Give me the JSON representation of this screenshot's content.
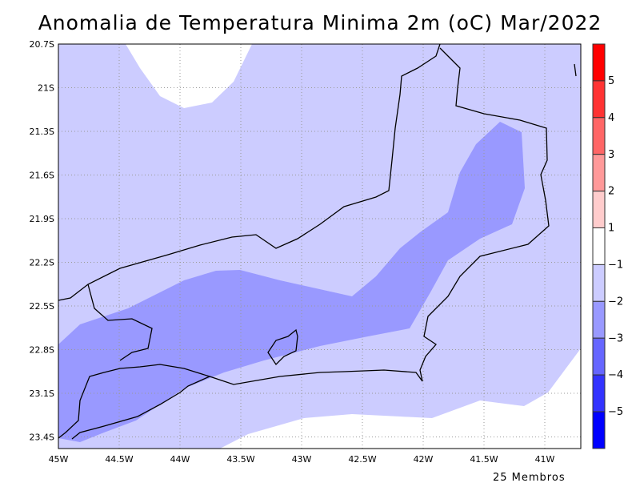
{
  "title": "Anomalia de Temperatura Minima 2m (oC) Mar/2022",
  "footer": "25 Membros",
  "lat_labels": [
    "20.7S",
    "21S",
    "21.3S",
    "21.6S",
    "21.9S",
    "22.2S",
    "22.5S",
    "22.8S",
    "23.1S",
    "23.4S"
  ],
  "lon_labels": [
    "45W",
    "44.5W",
    "44W",
    "43.5W",
    "43W",
    "42.5W",
    "42W",
    "41.5W",
    "41W"
  ],
  "colorbar": {
    "labels": [
      "5",
      "4",
      "3",
      "2",
      "1",
      "−1",
      "−2",
      "−3",
      "−4",
      "−5"
    ],
    "colors": [
      "#ff0000",
      "#ff3333",
      "#ff6666",
      "#ff9999",
      "#ffcccc",
      "#ffffff",
      "#ccccff",
      "#9999ff",
      "#6666ff",
      "#3333ff",
      "#0000ff"
    ]
  },
  "fill_colors": {
    "above_-1": "#ffffff",
    "-2_to_-1": "#ccccff",
    "-3_to_-2": "#9999ff"
  }
}
